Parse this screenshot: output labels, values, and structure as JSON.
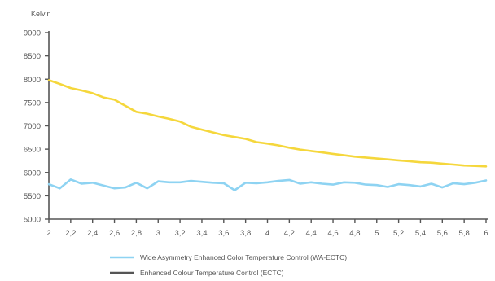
{
  "chart_data": {
    "type": "line",
    "ylabel": "Kelvin",
    "ylim": [
      5000,
      9000
    ],
    "yticks": [
      5000,
      5500,
      6000,
      6500,
      7000,
      7500,
      8000,
      8500,
      9000
    ],
    "xlim": [
      2,
      6
    ],
    "xticks": [
      2,
      2.2,
      2.4,
      2.6,
      2.8,
      3,
      3.2,
      3.4,
      3.6,
      3.8,
      4,
      4.2,
      4.4,
      4.6,
      4.8,
      5,
      5.2,
      5.4,
      5.6,
      5.8,
      6
    ],
    "xtick_labels": [
      "2",
      "2,2",
      "2,4",
      "2,6",
      "2,8",
      "3",
      "3,2",
      "3,4",
      "3,6",
      "3,8",
      "4",
      "4,2",
      "4,4",
      "4,6",
      "4,8",
      "5",
      "5,2",
      "5,4",
      "5,6",
      "5,8",
      "6"
    ],
    "grid": false,
    "legend_position": "bottom",
    "series": [
      {
        "name": "Wide Asymmetry Enhanced Color Temperature Control (WA-ECTC)",
        "color": "#8ed3f2",
        "x": [
          2,
          2.1,
          2.2,
          2.3,
          2.4,
          2.5,
          2.6,
          2.7,
          2.8,
          2.9,
          3,
          3.1,
          3.2,
          3.3,
          3.4,
          3.5,
          3.6,
          3.7,
          3.8,
          3.9,
          4,
          4.1,
          4.2,
          4.3,
          4.4,
          4.5,
          4.6,
          4.7,
          4.8,
          4.9,
          5,
          5.1,
          5.2,
          5.3,
          5.4,
          5.5,
          5.6,
          5.7,
          5.8,
          5.9,
          6
        ],
        "values": [
          5750,
          5660,
          5850,
          5760,
          5780,
          5720,
          5660,
          5680,
          5780,
          5660,
          5810,
          5790,
          5790,
          5820,
          5800,
          5780,
          5770,
          5620,
          5780,
          5770,
          5790,
          5820,
          5840,
          5760,
          5790,
          5760,
          5740,
          5790,
          5780,
          5740,
          5730,
          5690,
          5750,
          5730,
          5700,
          5760,
          5680,
          5770,
          5750,
          5780,
          5830
        ]
      },
      {
        "name": "Enhanced Colour Temperature Control (ECTC)",
        "legend_color": "#555555",
        "color": "#f5d73c",
        "x": [
          2,
          2.1,
          2.2,
          2.3,
          2.4,
          2.5,
          2.6,
          2.7,
          2.8,
          2.9,
          3,
          3.1,
          3.2,
          3.3,
          3.4,
          3.5,
          3.6,
          3.7,
          3.8,
          3.9,
          4,
          4.1,
          4.2,
          4.3,
          4.4,
          4.5,
          4.6,
          4.7,
          4.8,
          4.9,
          5,
          5.1,
          5.2,
          5.3,
          5.4,
          5.5,
          5.6,
          5.7,
          5.8,
          5.9,
          6
        ],
        "values": [
          7980,
          7900,
          7810,
          7760,
          7700,
          7610,
          7560,
          7430,
          7300,
          7260,
          7200,
          7150,
          7090,
          6980,
          6920,
          6860,
          6800,
          6760,
          6720,
          6650,
          6620,
          6580,
          6530,
          6490,
          6460,
          6430,
          6400,
          6370,
          6340,
          6320,
          6300,
          6280,
          6260,
          6240,
          6220,
          6210,
          6190,
          6170,
          6150,
          6140,
          6130
        ]
      }
    ]
  }
}
